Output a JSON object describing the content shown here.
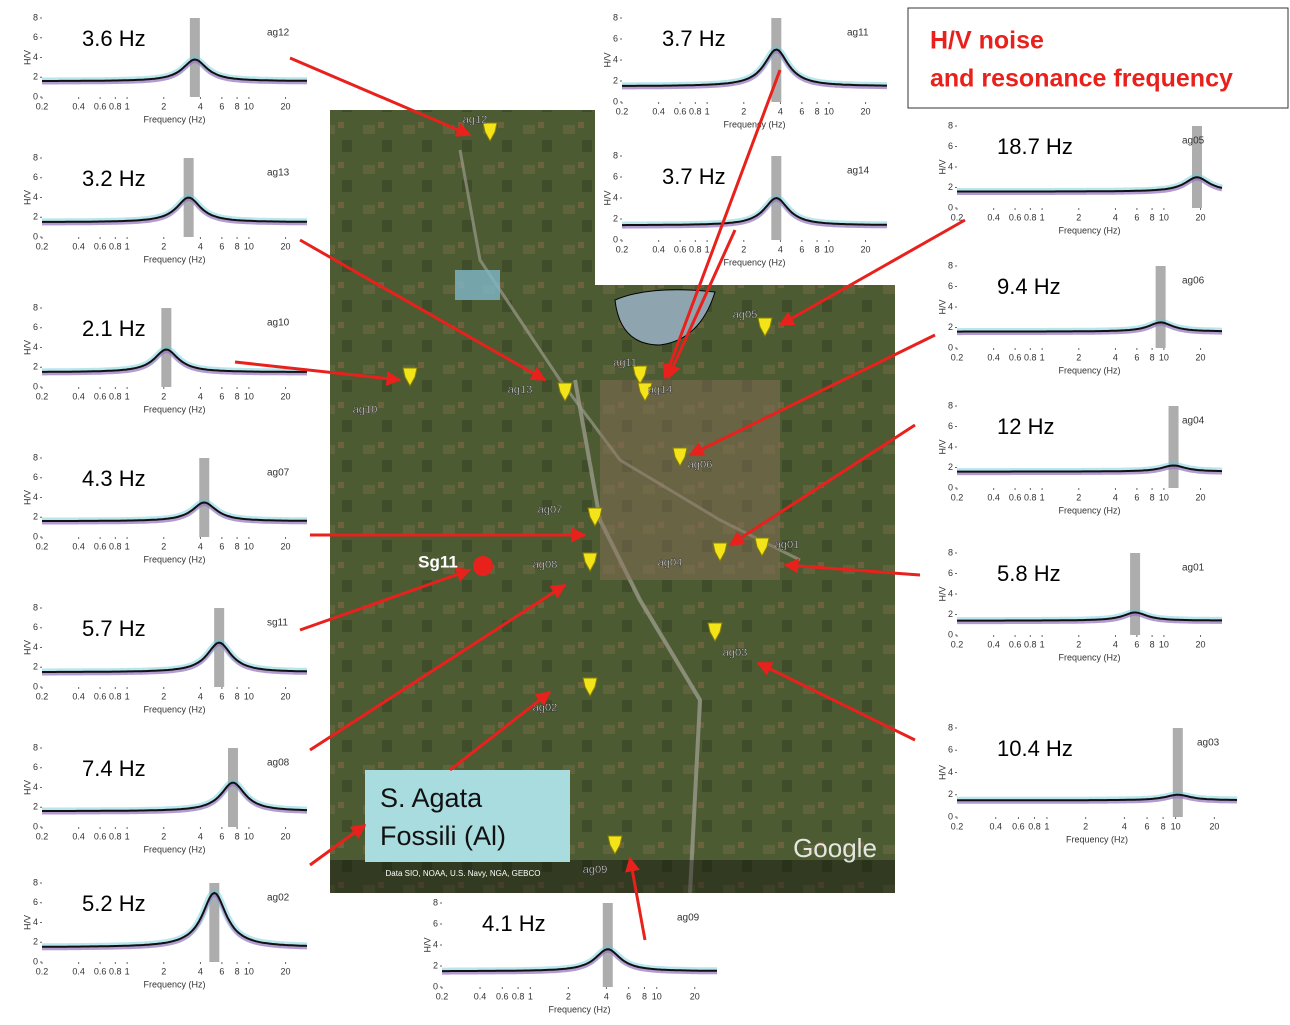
{
  "title": [
    "H/V noise",
    "and resonance frequency"
  ],
  "axes": {
    "ylabel": "H/V",
    "xlabel": "Frequency (Hz)",
    "xlim": [
      0.2,
      30
    ],
    "ylim": [
      0,
      8
    ],
    "xticks": [
      0.2,
      0.4,
      0.6,
      0.8,
      1,
      2,
      4,
      6,
      8,
      10,
      20
    ],
    "yticks": [
      0,
      2,
      4,
      6,
      8
    ],
    "log_x": true
  },
  "plots": [
    {
      "station": "ag12",
      "label": "3.6 Hz",
      "peak_hz": 3.6,
      "peak_hv": 3.8,
      "base_hv": 1.6
    },
    {
      "station": "ag13",
      "label": "3.2 Hz",
      "peak_hz": 3.2,
      "peak_hv": 4,
      "base_hv": 1.5
    },
    {
      "station": "ag10",
      "label": "2.1 Hz",
      "peak_hz": 2.1,
      "peak_hv": 3.8,
      "base_hv": 1.5
    },
    {
      "station": "ag07",
      "label": "4.3 Hz",
      "peak_hz": 4.3,
      "peak_hv": 3.5,
      "base_hv": 1.6
    },
    {
      "station": "sg11",
      "label": "5.7 Hz",
      "peak_hz": 5.7,
      "peak_hv": 4.5,
      "base_hv": 1.5
    },
    {
      "station": "ag08",
      "label": "7.4 Hz",
      "peak_hz": 7.4,
      "peak_hv": 4.5,
      "base_hv": 1.6
    },
    {
      "station": "ag02",
      "label": "5.2 Hz",
      "peak_hz": 5.2,
      "peak_hv": 7,
      "base_hv": 1.5
    },
    {
      "station": "ag11",
      "label": "3.7 Hz",
      "peak_hz": 3.7,
      "peak_hv": 5,
      "base_hv": 1.5
    },
    {
      "station": "ag14",
      "label": "3.7 Hz",
      "peak_hz": 3.7,
      "peak_hv": 4,
      "base_hv": 1.4
    },
    {
      "station": "ag05",
      "label": "18.7 Hz",
      "peak_hz": 18.7,
      "peak_hv": 3,
      "base_hv": 1.6
    },
    {
      "station": "ag06",
      "label": "9.4 Hz",
      "peak_hz": 9.4,
      "peak_hv": 2.5,
      "base_hv": 1.6
    },
    {
      "station": "ag04",
      "label": "12 Hz",
      "peak_hz": 12,
      "peak_hv": 2.2,
      "base_hv": 1.6
    },
    {
      "station": "ag01",
      "label": "5.8 Hz",
      "peak_hz": 5.8,
      "peak_hv": 2.2,
      "base_hv": 1.4
    },
    {
      "station": "ag03",
      "label": "10.4 Hz",
      "peak_hz": 10.4,
      "peak_hv": 2,
      "base_hv": 1.5
    },
    {
      "station": "ag09",
      "label": "4.1 Hz",
      "peak_hz": 4.1,
      "peak_hv": 3.6,
      "base_hv": 1.5
    }
  ],
  "map": {
    "stations": [
      "ag12",
      "ag13",
      "ag10",
      "ag11",
      "ag14",
      "ag05",
      "ag06",
      "ag07",
      "ag08",
      "ag04",
      "ag01",
      "ag03",
      "ag02",
      "ag09"
    ],
    "site": "Sg11",
    "place": [
      "S. Agata",
      "Fossili (Al)"
    ],
    "watermark": "Google",
    "credits": "Data SIO, NOAA, U.S. Navy, NGA, GEBCO"
  }
}
